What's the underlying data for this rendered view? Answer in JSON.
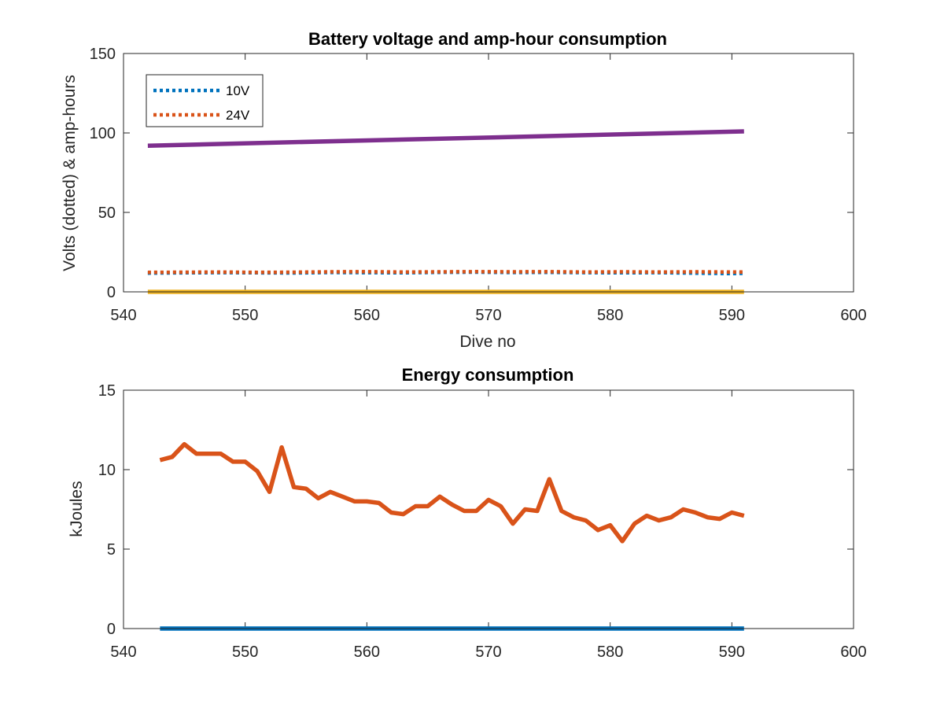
{
  "chart_data": [
    {
      "type": "line",
      "title": "Battery voltage and amp-hour consumption",
      "xlabel": "Dive no",
      "ylabel": "Volts (dotted) & amp-hours",
      "xlim": [
        540,
        600
      ],
      "ylim": [
        0,
        150
      ],
      "xticks": [
        540,
        550,
        560,
        570,
        580,
        590,
        600
      ],
      "yticks": [
        0,
        50,
        100,
        150
      ],
      "grid": false,
      "legend": {
        "location": "top-left",
        "entries": [
          "10V",
          "24V"
        ]
      },
      "series": [
        {
          "name": "10V",
          "style": "dotted",
          "color": "#0072BD",
          "x": [
            542,
            545,
            548,
            551,
            554,
            557,
            560,
            563,
            566,
            569,
            572,
            575,
            578,
            581,
            584,
            587,
            590,
            591
          ],
          "y": [
            11.8,
            12.0,
            12.1,
            12.0,
            11.9,
            12.2,
            12.1,
            12.0,
            12.3,
            12.4,
            12.2,
            12.3,
            12.1,
            12.0,
            12.1,
            11.8,
            11.5,
            11.7
          ]
        },
        {
          "name": "24V",
          "style": "dotted",
          "color": "#D95319",
          "x": [
            542,
            545,
            548,
            551,
            554,
            557,
            560,
            563,
            566,
            569,
            572,
            575,
            578,
            581,
            584,
            587,
            590,
            591
          ],
          "y": [
            12.3,
            12.4,
            12.5,
            12.3,
            12.4,
            12.6,
            12.7,
            12.5,
            12.6,
            12.7,
            12.6,
            12.7,
            12.5,
            12.6,
            12.5,
            12.6,
            12.5,
            12.5
          ]
        },
        {
          "style": "solid",
          "color": "#EDB120",
          "x": [
            542,
            591
          ],
          "y": [
            0,
            0
          ]
        },
        {
          "style": "solid",
          "color": "#7E2F8E",
          "x": [
            542,
            591
          ],
          "y": [
            92,
            101
          ]
        }
      ]
    },
    {
      "type": "line",
      "title": "Energy consumption",
      "xlabel": "",
      "ylabel": "kJoules",
      "xlim": [
        540,
        600
      ],
      "ylim": [
        0,
        15
      ],
      "xticks": [
        540,
        550,
        560,
        570,
        580,
        590,
        600
      ],
      "yticks": [
        0,
        5,
        10,
        15
      ],
      "grid": false,
      "series": [
        {
          "style": "solid",
          "color": "#0072BD",
          "x": [
            543,
            591
          ],
          "y": [
            0,
            0
          ]
        },
        {
          "style": "solid",
          "color": "#D95319",
          "x": [
            543,
            544,
            545,
            546,
            547,
            548,
            549,
            550,
            551,
            552,
            553,
            554,
            555,
            556,
            557,
            558,
            559,
            560,
            561,
            562,
            563,
            564,
            565,
            566,
            567,
            568,
            569,
            570,
            571,
            572,
            573,
            574,
            575,
            576,
            577,
            578,
            579,
            580,
            581,
            582,
            583,
            584,
            585,
            586,
            587,
            588,
            589,
            590,
            591
          ],
          "y": [
            10.6,
            10.8,
            11.6,
            11.0,
            11.0,
            11.0,
            10.5,
            10.5,
            9.9,
            8.6,
            11.4,
            8.9,
            8.8,
            8.2,
            8.6,
            8.3,
            8.0,
            8.0,
            7.9,
            7.3,
            7.2,
            7.7,
            7.7,
            8.3,
            7.8,
            7.4,
            7.4,
            8.1,
            7.7,
            6.6,
            7.5,
            7.4,
            9.4,
            7.4,
            7.0,
            6.8,
            6.2,
            6.5,
            5.5,
            6.6,
            7.1,
            6.8,
            7.0,
            7.5,
            7.3,
            7.0,
            6.9,
            7.3,
            7.1
          ]
        }
      ]
    }
  ]
}
